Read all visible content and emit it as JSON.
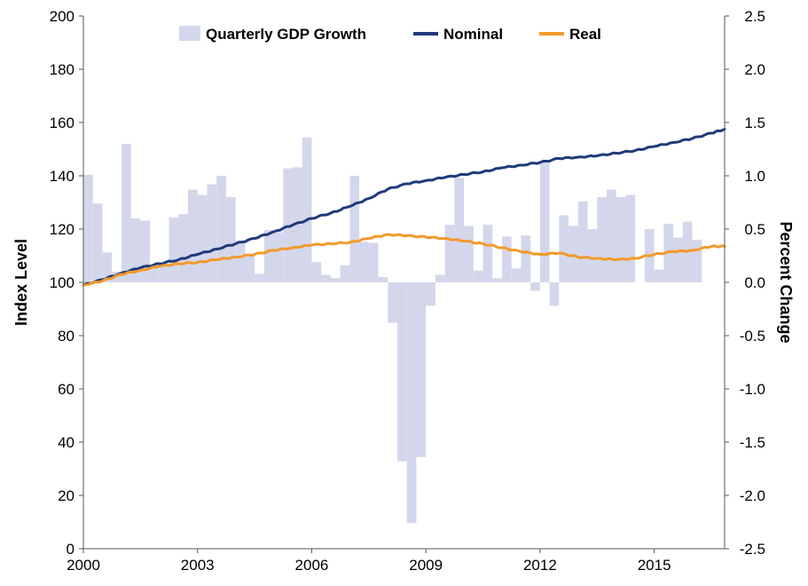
{
  "chart_data": {
    "type": "bar+line",
    "title": "",
    "x_axis": {
      "ticks": [
        "2000",
        "2003",
        "2006",
        "2009",
        "2012",
        "2015"
      ],
      "range": [
        2000,
        2016.85
      ]
    },
    "y_left": {
      "label": "Index Level",
      "range": [
        0,
        200
      ],
      "ticks": [
        "0",
        "20",
        "40",
        "60",
        "80",
        "100",
        "120",
        "140",
        "160",
        "180",
        "200"
      ]
    },
    "y_right": {
      "label": "Percent Change",
      "range": [
        -2.5,
        2.5
      ],
      "ticks": [
        "-2.5",
        "-2.0",
        "-1.5",
        "-1.0",
        "-0.5",
        "0.0",
        "0.5",
        "1.0",
        "1.5",
        "2.0",
        "2.5"
      ],
      "negative_tick_color": "#e0201b"
    },
    "legend": [
      "Quarterly GDP Growth",
      "Nominal",
      "Real"
    ],
    "colors": {
      "bars": "#d4d7eb",
      "nominal": "#1f3a7a",
      "real": "#f39a2a"
    },
    "bars": {
      "name": "Quarterly GDP Growth",
      "start": 2000,
      "period_years": 0.25,
      "values": [
        1.01,
        0.74,
        0.28,
        0.1,
        1.3,
        0.6,
        0.58,
        0.13,
        0.15,
        0.61,
        0.64,
        0.87,
        0.82,
        0.92,
        1.0,
        0.8,
        0.38,
        0.25,
        0.08,
        0.49,
        0.47,
        1.07,
        1.08,
        1.36,
        0.19,
        0.07,
        0.04,
        0.16,
        1.0,
        0.38,
        0.37,
        0.05,
        -0.38,
        -1.68,
        -2.26,
        -1.64,
        -0.22,
        0.07,
        0.54,
        0.98,
        0.53,
        0.11,
        0.54,
        0.04,
        0.43,
        0.13,
        0.44,
        -0.08,
        1.14,
        -0.22,
        0.63,
        0.53,
        0.76,
        0.5,
        0.8,
        0.87,
        0.8,
        0.82,
        0.0,
        0.5,
        0.12,
        0.55,
        0.42,
        0.57,
        0.4
      ]
    },
    "series": [
      {
        "name": "Nominal",
        "x": [
          2000.0,
          2000.5,
          2001.0,
          2001.5,
          2002.0,
          2002.5,
          2003.0,
          2003.5,
          2004.0,
          2004.5,
          2005.0,
          2005.5,
          2006.0,
          2006.5,
          2007.0,
          2007.5,
          2008.0,
          2008.5,
          2009.0,
          2009.5,
          2010.0,
          2010.5,
          2011.0,
          2011.5,
          2012.0,
          2012.5,
          2013.0,
          2013.5,
          2014.0,
          2014.5,
          2015.0,
          2015.5,
          2016.0,
          2016.5,
          2016.85
        ],
        "values": [
          99,
          101,
          103.5,
          105.5,
          107,
          108.5,
          110.5,
          112.5,
          114.5,
          116.5,
          119,
          121.5,
          124,
          126,
          128.5,
          131.5,
          135,
          137,
          138.2,
          139.4,
          140.5,
          141.5,
          143,
          144,
          145,
          146.5,
          147,
          147.5,
          148.5,
          149.5,
          151,
          152.5,
          154,
          156,
          157.5
        ]
      },
      {
        "name": "Real",
        "x": [
          2000.0,
          2000.5,
          2001.0,
          2001.5,
          2002.0,
          2002.5,
          2003.0,
          2003.5,
          2004.0,
          2004.5,
          2005.0,
          2005.5,
          2006.0,
          2006.5,
          2007.0,
          2007.5,
          2008.0,
          2008.5,
          2009.0,
          2009.5,
          2010.0,
          2010.5,
          2011.0,
          2011.5,
          2012.0,
          2012.5,
          2013.0,
          2013.5,
          2014.0,
          2014.5,
          2015.0,
          2015.5,
          2016.0,
          2016.5,
          2016.85
        ],
        "values": [
          99,
          100.5,
          103,
          104.5,
          106,
          107,
          107.5,
          108.5,
          109.5,
          110.5,
          112,
          113,
          114,
          114.5,
          115,
          116.5,
          118,
          117.5,
          117,
          116.5,
          115.5,
          114.5,
          113,
          111.5,
          110.5,
          111,
          109.5,
          109,
          108.5,
          109,
          110.5,
          111.5,
          112,
          113.5,
          113.5
        ]
      }
    ]
  }
}
